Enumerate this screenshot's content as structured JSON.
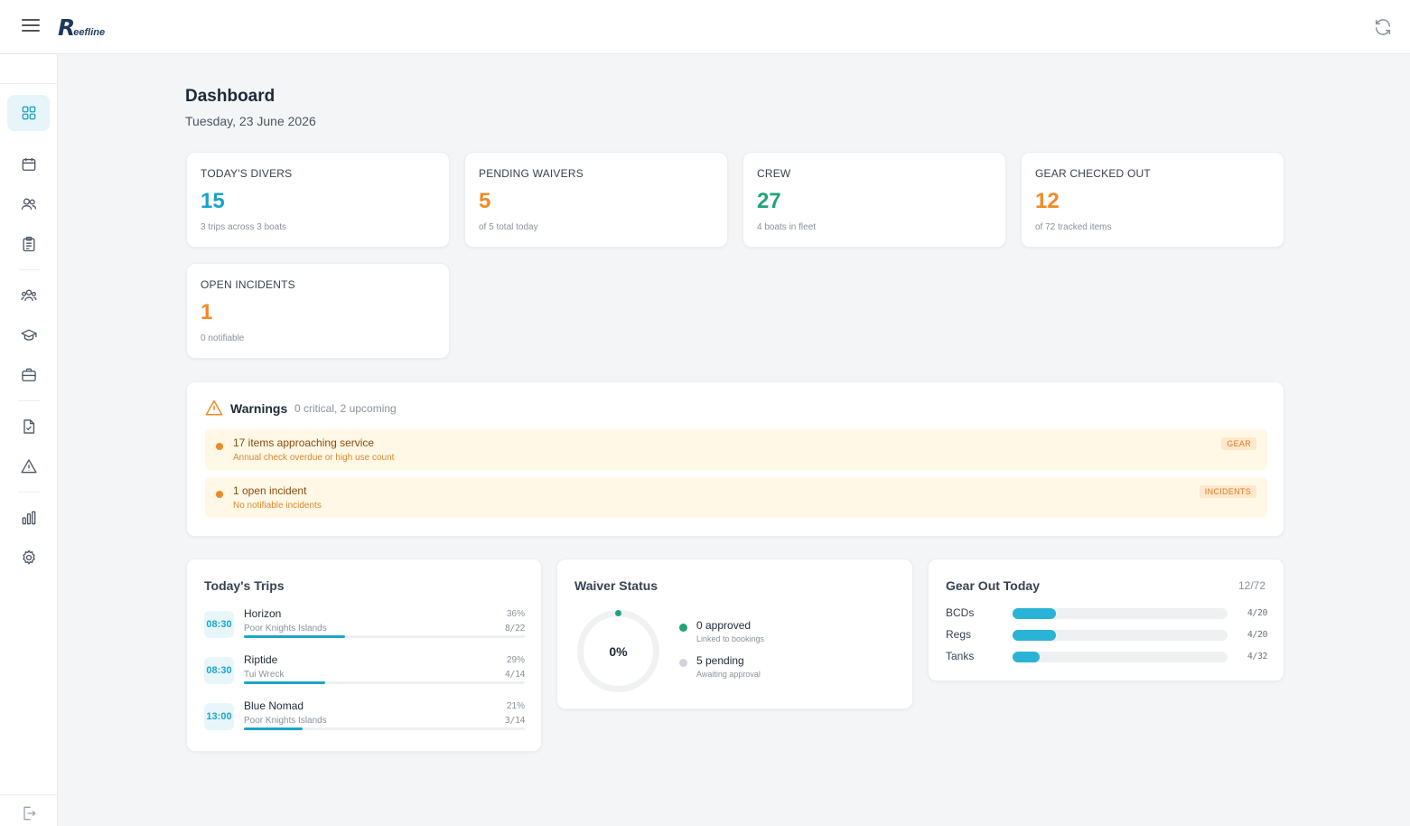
{
  "app": {
    "logo_r": "R",
    "logo_rest": "eefline"
  },
  "page": {
    "title": "Dashboard",
    "date": "Tuesday, 23 June 2026"
  },
  "stats": [
    {
      "label": "TODAY'S DIVERS",
      "value": "15",
      "sub": "3 trips across 3 boats",
      "color": "#1ba5c9"
    },
    {
      "label": "PENDING WAIVERS",
      "value": "5",
      "sub": "of 5 total today",
      "color": "#f08a24"
    },
    {
      "label": "CREW",
      "value": "27",
      "sub": "4 boats in fleet",
      "color": "#22a37a"
    },
    {
      "label": "GEAR CHECKED OUT",
      "value": "12",
      "sub": "of 72 tracked items",
      "color": "#f08a24"
    },
    {
      "label": "OPEN INCIDENTS",
      "value": "1",
      "sub": "0 notifiable",
      "color": "#f08a24"
    }
  ],
  "warnings": {
    "title": "Warnings",
    "summary": "0 critical, 2 upcoming",
    "items": [
      {
        "main": "17 items approaching service",
        "detail": "Annual check overdue or high use count",
        "tag": "GEAR"
      },
      {
        "main": "1 open incident",
        "detail": "No notifiable incidents",
        "tag": "INCIDENTS"
      }
    ]
  },
  "trips": {
    "title": "Today's Trips",
    "items": [
      {
        "time": "08:30",
        "name": "Horizon",
        "location": "Poor Knights Islands",
        "pct": "36%",
        "count": "8/22",
        "fill": 0.36
      },
      {
        "time": "08:30",
        "name": "Riptide",
        "location": "Tui Wreck",
        "pct": "29%",
        "count": "4/14",
        "fill": 0.29
      },
      {
        "time": "13:00",
        "name": "Blue Nomad",
        "location": "Poor Knights Islands",
        "pct": "21%",
        "count": "3/14",
        "fill": 0.21
      }
    ]
  },
  "waivers": {
    "title": "Waiver Status",
    "percent": "0%",
    "fill": 0.0,
    "legend": [
      {
        "main": "0 approved",
        "sub": "Linked to bookings",
        "color": "#22a37a"
      },
      {
        "main": "5 pending",
        "sub": "Awaiting approval",
        "color": "#d1d5db"
      }
    ]
  },
  "gear": {
    "title": "Gear Out Today",
    "count": "12/72",
    "items": [
      {
        "name": "BCDs",
        "value": "4/20",
        "fill": 0.2
      },
      {
        "name": "Regs",
        "value": "4/20",
        "fill": 0.2
      },
      {
        "name": "Tanks",
        "value": "4/32",
        "fill": 0.125
      }
    ]
  },
  "icons": {
    "menu": "menu-icon",
    "refresh": "refresh-icon",
    "sidebar": [
      "dashboard-icon",
      "calendar-icon",
      "users-icon",
      "clipboard-icon",
      "group-icon",
      "graduation-cap-icon",
      "briefcase-icon",
      "file-check-icon",
      "alert-triangle-icon",
      "bar-chart-icon",
      "gear-icon",
      "logout-icon"
    ]
  }
}
